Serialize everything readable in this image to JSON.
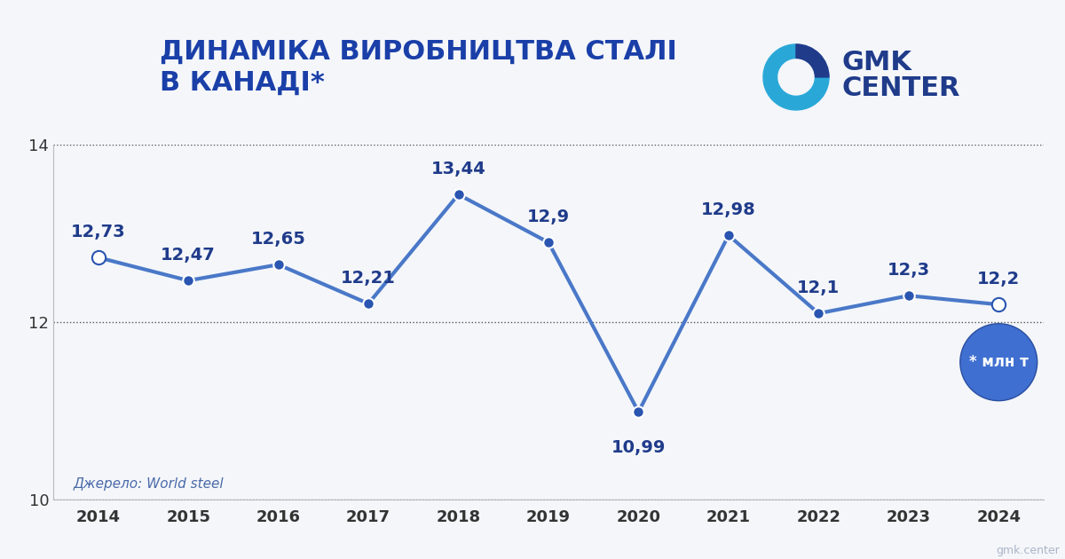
{
  "chart_data": {
    "type": "line",
    "title": "ДИНАМІКА ВИРОБНИЦТВА СТАЛІ\nВ КАНАДІ*",
    "categories": [
      "2014",
      "2015",
      "2016",
      "2017",
      "2018",
      "2019",
      "2020",
      "2021",
      "2022",
      "2023",
      "2024"
    ],
    "values": [
      12.73,
      12.47,
      12.65,
      12.21,
      13.44,
      12.9,
      10.99,
      12.98,
      12.1,
      12.3,
      12.2
    ],
    "value_labels": [
      "12,73",
      "12,47",
      "12,65",
      "12,21",
      "13,44",
      "12,9",
      "10,99",
      "12,98",
      "12,1",
      "12,3",
      "12,2"
    ],
    "color": "#4a78c8",
    "marker": "o",
    "line_style": "solid",
    "data_labels": true,
    "ylim": [
      10,
      14
    ],
    "yticks": [
      10,
      12,
      14
    ],
    "grid": true,
    "annotations": [
      "* млн т",
      "Джерело: World steel"
    ],
    "logo": "GMK\nCENTER",
    "watermark": "gmk.center"
  }
}
